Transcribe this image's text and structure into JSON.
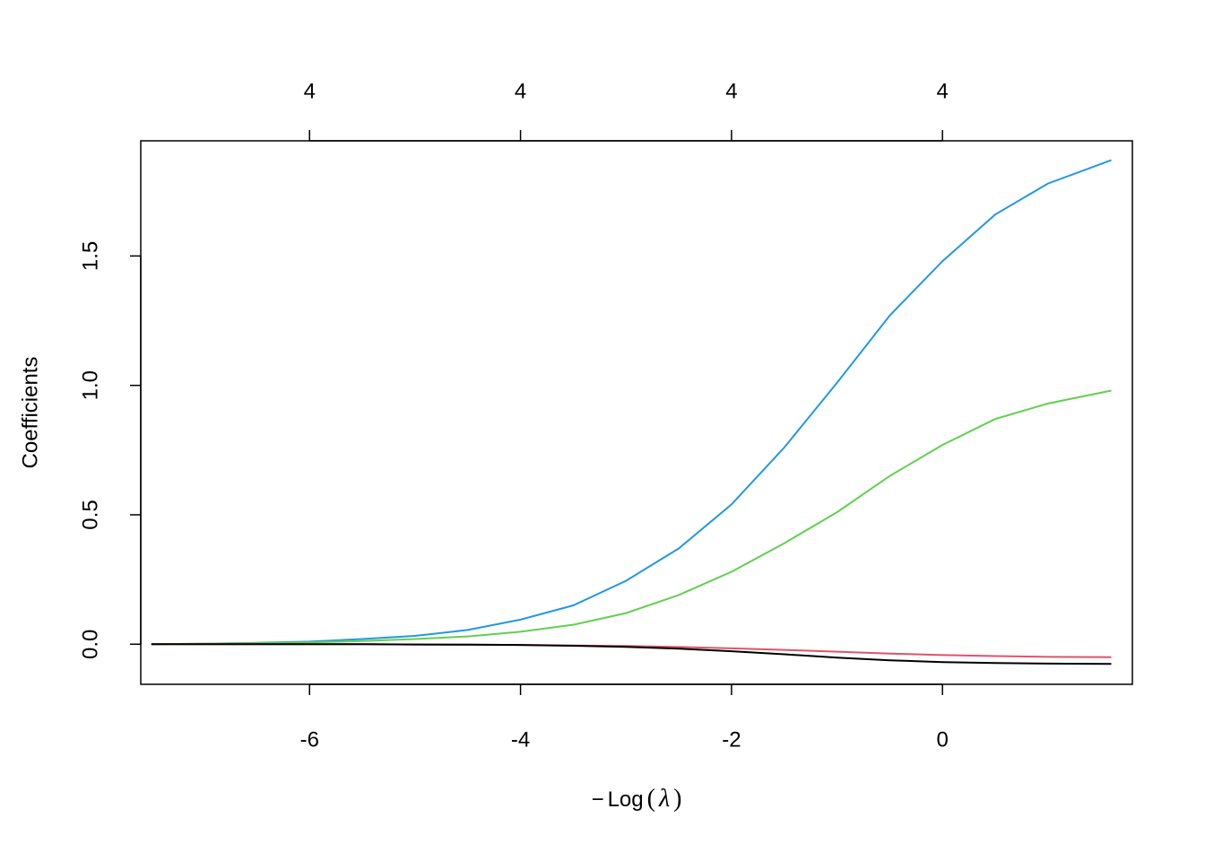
{
  "chart_data": {
    "type": "line",
    "title": "",
    "xlabel_prefix": "−",
    "xlabel_main": "Log",
    "xlabel_open": "(",
    "xlabel_lambda": "λ",
    "xlabel_close": ")",
    "ylabel": "Coefficients",
    "xlim": [
      -7.6,
      1.8
    ],
    "ylim": [
      -0.155,
      1.945
    ],
    "xticks": [
      -6,
      -4,
      -2,
      0
    ],
    "xtick_labels": [
      "-6",
      "-4",
      "-2",
      "0"
    ],
    "yticks": [
      0.0,
      0.5,
      1.0,
      1.5
    ],
    "ytick_labels": [
      "0.0",
      "0.5",
      "1.0",
      "1.5"
    ],
    "top_axis": {
      "ticks": [
        -6,
        -4,
        -2,
        0
      ],
      "labels": [
        "4",
        "4",
        "4",
        "4"
      ]
    },
    "grid": false,
    "legend": "none",
    "series": [
      {
        "color": "#2297E6",
        "x": [
          -7.5,
          -7.0,
          -6.5,
          -6.0,
          -5.5,
          -5.0,
          -4.5,
          -4.0,
          -3.5,
          -3.0,
          -2.5,
          -2.0,
          -1.5,
          -1.0,
          -0.5,
          0.0,
          0.5,
          1.0,
          1.6
        ],
        "y": [
          0.0,
          0.002,
          0.005,
          0.01,
          0.02,
          0.032,
          0.055,
          0.095,
          0.15,
          0.245,
          0.37,
          0.54,
          0.76,
          1.01,
          1.27,
          1.48,
          1.66,
          1.78,
          1.87
        ]
      },
      {
        "color": "#61D04F",
        "x": [
          -7.5,
          -7.0,
          -6.5,
          -6.0,
          -5.5,
          -5.0,
          -4.5,
          -4.0,
          -3.5,
          -3.0,
          -2.5,
          -2.0,
          -1.5,
          -1.0,
          -0.5,
          0.0,
          0.5,
          1.0,
          1.6
        ],
        "y": [
          0.0,
          0.002,
          0.004,
          0.007,
          0.012,
          0.02,
          0.03,
          0.048,
          0.075,
          0.12,
          0.19,
          0.28,
          0.39,
          0.51,
          0.65,
          0.77,
          0.87,
          0.93,
          0.98
        ]
      },
      {
        "color": "#DF536B",
        "x": [
          -7.5,
          -7.0,
          -6.5,
          -6.0,
          -5.5,
          -5.0,
          -4.5,
          -4.0,
          -3.5,
          -3.0,
          -2.5,
          -2.0,
          -1.5,
          -1.0,
          -0.5,
          0.0,
          0.5,
          1.0,
          1.6
        ],
        "y": [
          0.0,
          0.0,
          0.0,
          0.0,
          0.0,
          -0.001,
          -0.002,
          -0.003,
          -0.005,
          -0.007,
          -0.011,
          -0.016,
          -0.022,
          -0.029,
          -0.036,
          -0.042,
          -0.046,
          -0.049,
          -0.05
        ]
      },
      {
        "color": "#000000",
        "x": [
          -7.5,
          -7.0,
          -6.5,
          -6.0,
          -5.5,
          -5.0,
          -4.5,
          -4.0,
          -3.5,
          -3.0,
          -2.5,
          -2.0,
          -1.5,
          -1.0,
          -0.5,
          0.0,
          0.5,
          1.0,
          1.6
        ],
        "y": [
          0.0,
          0.0,
          0.0,
          0.0,
          0.0,
          -0.001,
          -0.002,
          -0.003,
          -0.006,
          -0.01,
          -0.017,
          -0.027,
          -0.039,
          -0.052,
          -0.062,
          -0.069,
          -0.073,
          -0.075,
          -0.076
        ]
      }
    ]
  }
}
